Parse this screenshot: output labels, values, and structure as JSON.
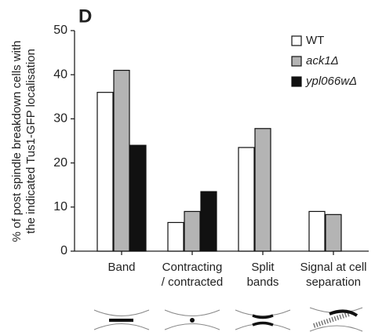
{
  "panel_label": "D",
  "chart_data": {
    "type": "bar",
    "y_label_lines": [
      "% of post spindle breakdown cells with",
      "the indicated Tus1-GFP localisation"
    ],
    "categories": [
      [
        "Band"
      ],
      [
        "Contracting",
        "/ contracted"
      ],
      [
        "Split",
        "bands"
      ],
      [
        "Signal at cell",
        "separation"
      ]
    ],
    "series": [
      {
        "name": "WT",
        "color": "#ffffff",
        "values": [
          36,
          6.5,
          23.5,
          9
        ]
      },
      {
        "name": "ack1Δ",
        "color": "#b4b4b4",
        "values": [
          41,
          9,
          27.8,
          8.3
        ]
      },
      {
        "name": "ypl066wΔ",
        "color": "#111111",
        "values": [
          24,
          13.5,
          null,
          null
        ]
      }
    ],
    "ylim": [
      0,
      50
    ],
    "yticks": [
      0,
      10,
      20,
      30,
      40,
      50
    ],
    "legend": "upper right"
  }
}
